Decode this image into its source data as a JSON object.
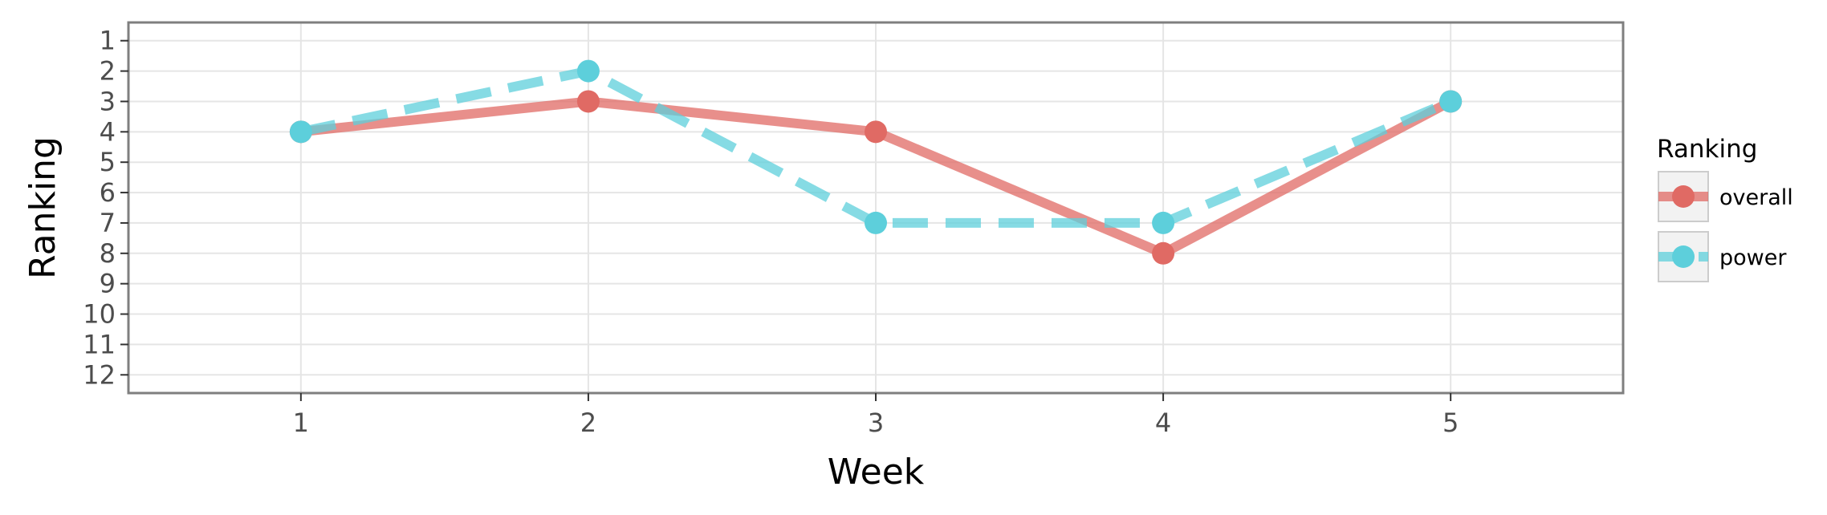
{
  "chart_data": {
    "type": "line",
    "xlabel": "Week",
    "ylabel": "Ranking",
    "x": [
      1,
      2,
      3,
      4,
      5
    ],
    "xlim": [
      0.4,
      5.6
    ],
    "ylim": [
      12.6,
      0.4
    ],
    "y_reversed": true,
    "x_ticks": [
      1,
      2,
      3,
      4,
      5
    ],
    "y_ticks": [
      1,
      2,
      3,
      4,
      5,
      6,
      7,
      8,
      9,
      10,
      11,
      12
    ],
    "grid": true,
    "legend": {
      "title": "Ranking",
      "placement": "right"
    },
    "series": [
      {
        "name": "overall",
        "values": [
          4,
          3,
          4,
          8,
          3
        ],
        "color": "#E06A64",
        "line_style": "solid"
      },
      {
        "name": "power",
        "values": [
          4,
          2,
          7,
          7,
          3
        ],
        "color": "#5DCFDB",
        "line_style": "dashed"
      }
    ]
  }
}
